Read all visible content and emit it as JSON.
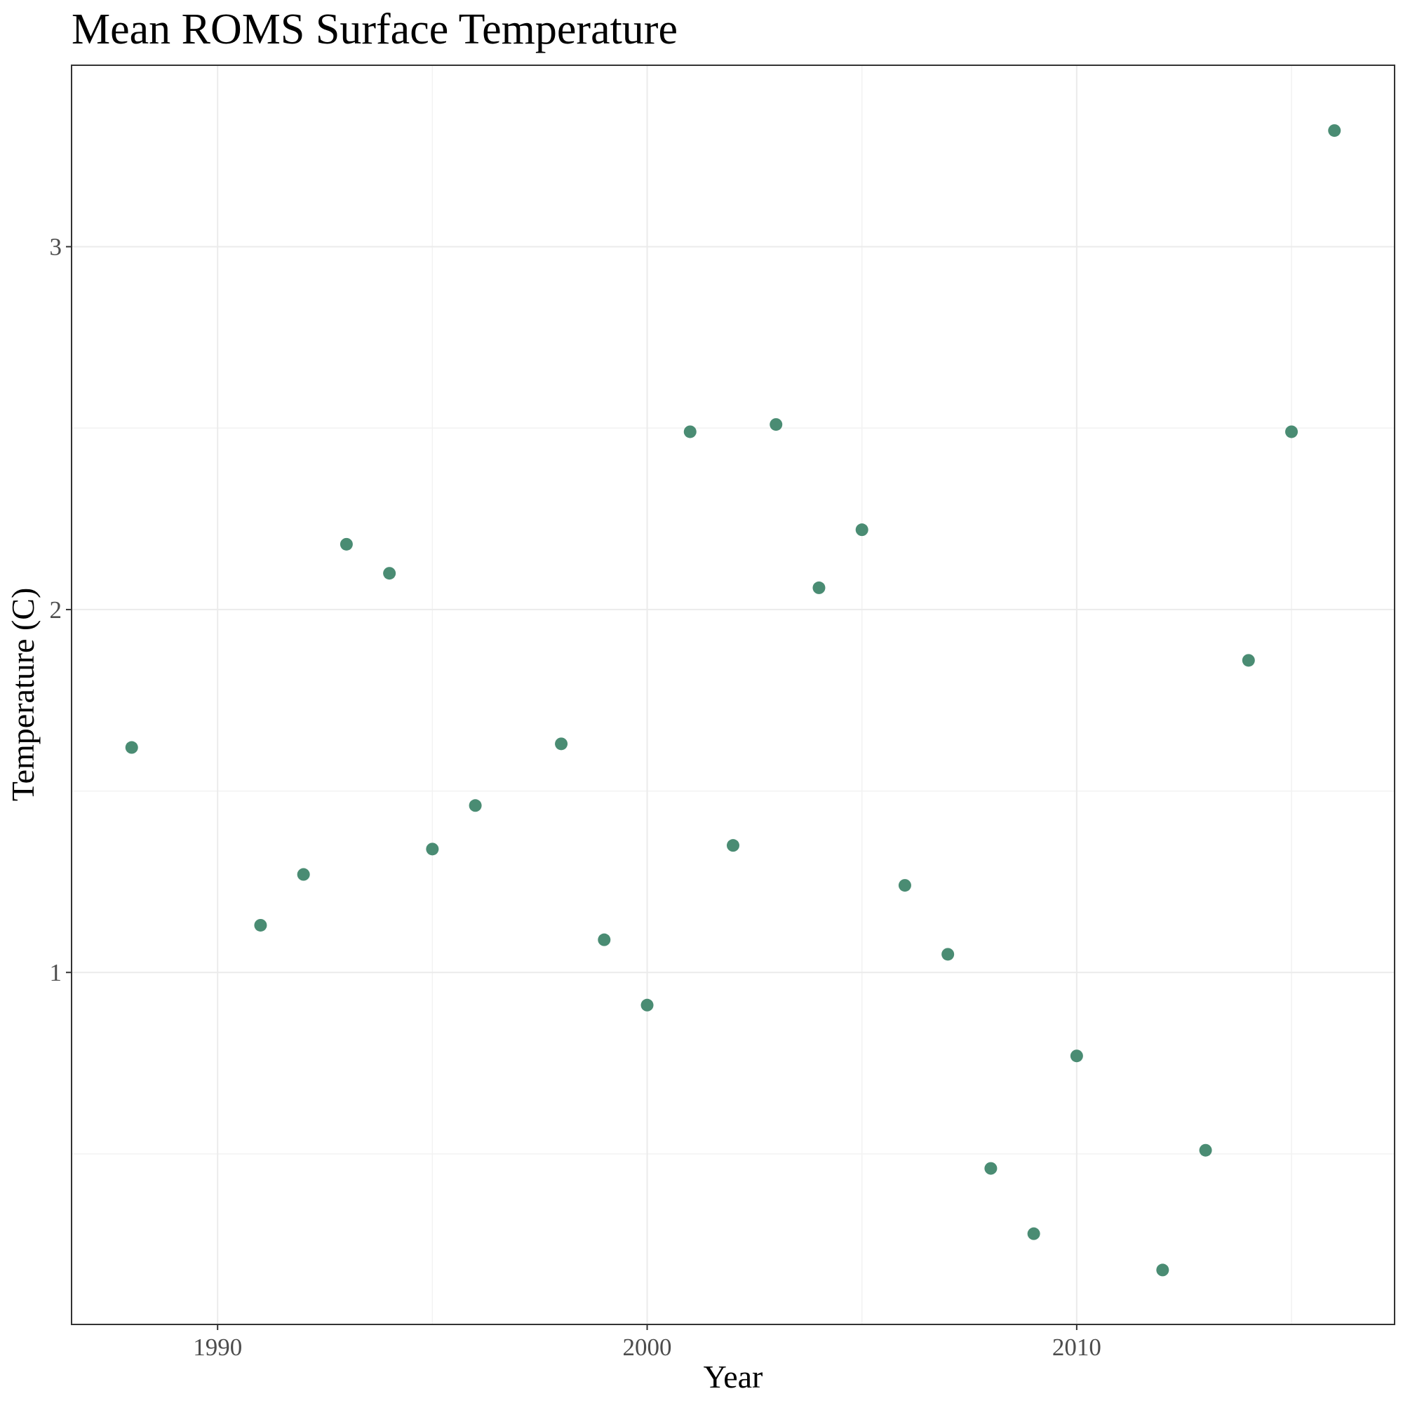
{
  "chart_data": {
    "type": "scatter",
    "title": "Mean ROMS Surface Temperature",
    "xlabel": "Year",
    "ylabel": "Temperature (C)",
    "xlim": [
      1986.6,
      2017.4
    ],
    "ylim": [
      0.03,
      3.5
    ],
    "xticks": [
      1990,
      2000,
      2010
    ],
    "xtick_labels": [
      "1990",
      "2000",
      "2010"
    ],
    "yticks": [
      1,
      2,
      3
    ],
    "ytick_labels": [
      "1",
      "2",
      "3"
    ],
    "grid": true,
    "point_color": "#4a8c73",
    "points": [
      {
        "x": 1988,
        "y": 1.62
      },
      {
        "x": 1991,
        "y": 1.13
      },
      {
        "x": 1992,
        "y": 1.27
      },
      {
        "x": 1993,
        "y": 2.18
      },
      {
        "x": 1994,
        "y": 2.1
      },
      {
        "x": 1995,
        "y": 1.34
      },
      {
        "x": 1996,
        "y": 1.46
      },
      {
        "x": 1998,
        "y": 1.63
      },
      {
        "x": 1999,
        "y": 1.09
      },
      {
        "x": 2000,
        "y": 0.91
      },
      {
        "x": 2001,
        "y": 2.49
      },
      {
        "x": 2002,
        "y": 1.35
      },
      {
        "x": 2003,
        "y": 2.51
      },
      {
        "x": 2004,
        "y": 2.06
      },
      {
        "x": 2005,
        "y": 2.22
      },
      {
        "x": 2006,
        "y": 1.24
      },
      {
        "x": 2007,
        "y": 1.05
      },
      {
        "x": 2008,
        "y": 0.46
      },
      {
        "x": 2009,
        "y": 0.28
      },
      {
        "x": 2010,
        "y": 0.77
      },
      {
        "x": 2012,
        "y": 0.18
      },
      {
        "x": 2013,
        "y": 0.51
      },
      {
        "x": 2014,
        "y": 1.86
      },
      {
        "x": 2015,
        "y": 2.49
      },
      {
        "x": 2016,
        "y": 3.32
      }
    ]
  }
}
